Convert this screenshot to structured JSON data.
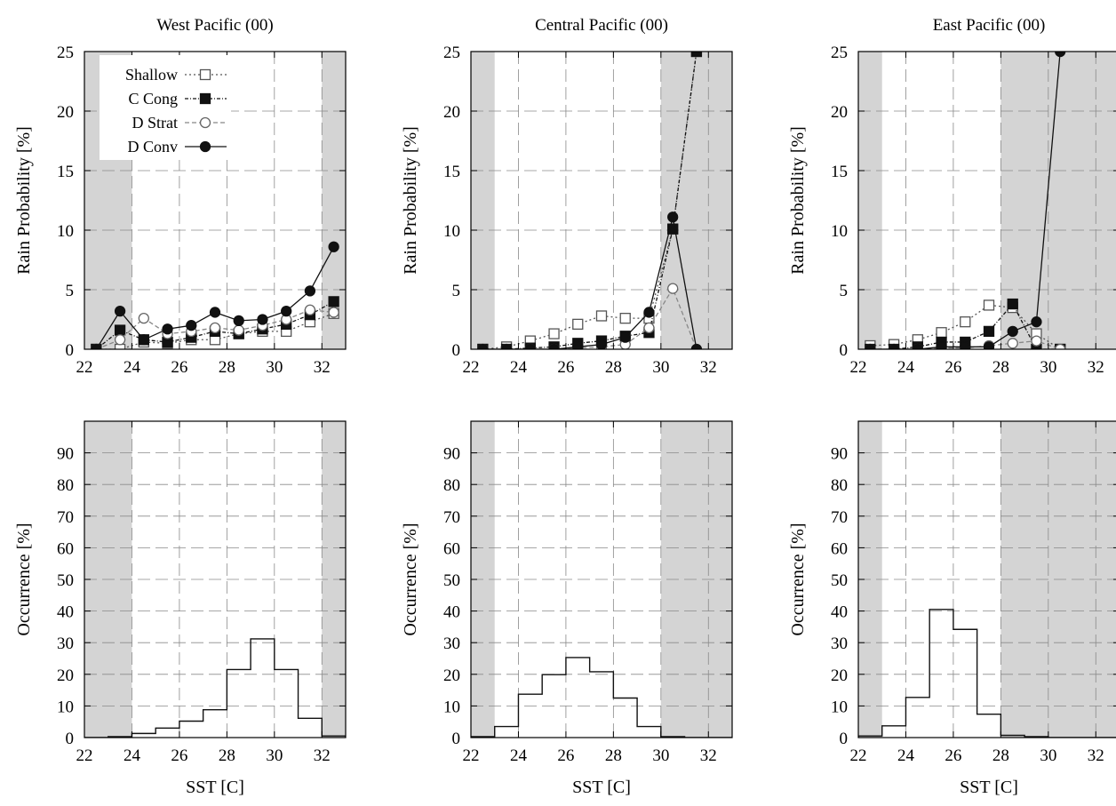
{
  "chart_data": [
    {
      "type": "line",
      "title": "West Pacific (00)",
      "xlabel": "",
      "ylabel": "Rain Probability [%]",
      "xlim": [
        22,
        33
      ],
      "ylim": [
        0,
        25
      ],
      "xticks": [
        "22",
        "24",
        "26",
        "28",
        "30",
        "32"
      ],
      "yticks": [
        "0",
        "5",
        "10",
        "15",
        "20",
        "25"
      ],
      "grid": true,
      "shaded_x": [
        [
          22,
          24
        ],
        [
          32,
          33
        ]
      ],
      "legend": {
        "placement": "top-left",
        "entries": [
          "Shallow",
          "C Cong",
          "D Strat",
          "D Conv"
        ]
      },
      "x": [
        22.5,
        23.5,
        24.5,
        25.5,
        26.5,
        27.5,
        28.5,
        29.5,
        30.5,
        31.5,
        32.5
      ],
      "series": [
        {
          "name": "Shallow",
          "values": [
            0,
            0,
            0.6,
            0.5,
            0.8,
            0.8,
            1.3,
            1.5,
            1.5,
            2.3,
            3.0
          ]
        },
        {
          "name": "C Cong",
          "values": [
            0,
            1.6,
            0.8,
            0.6,
            1.0,
            1.5,
            1.3,
            1.7,
            2.1,
            2.9,
            4.0
          ]
        },
        {
          "name": "D Strat",
          "values": [
            0,
            0.8,
            2.6,
            1.3,
            1.5,
            1.8,
            1.6,
            2.0,
            2.5,
            3.3,
            3.1
          ]
        },
        {
          "name": "D Conv",
          "values": [
            0,
            3.2,
            0.8,
            1.7,
            2.0,
            3.1,
            2.4,
            2.5,
            3.2,
            4.9,
            8.6
          ]
        }
      ]
    },
    {
      "type": "line",
      "title": "Central Pacific (00)",
      "xlabel": "",
      "ylabel": "Rain Probability [%]",
      "xlim": [
        22,
        33
      ],
      "ylim": [
        0,
        25
      ],
      "xticks": [
        "22",
        "24",
        "26",
        "28",
        "30",
        "32"
      ],
      "yticks": [
        "0",
        "5",
        "10",
        "15",
        "20",
        "25"
      ],
      "grid": true,
      "shaded_x": [
        [
          22,
          23
        ],
        [
          30,
          33
        ]
      ],
      "x": [
        22.5,
        23.5,
        24.5,
        25.5,
        26.5,
        27.5,
        28.5,
        29.5,
        30.5,
        31.5
      ],
      "series": [
        {
          "name": "Shallow",
          "values": [
            0,
            0.2,
            0.7,
            1.3,
            2.1,
            2.8,
            2.6,
            2.6,
            10.1,
            25
          ]
        },
        {
          "name": "C Cong",
          "values": [
            0,
            0,
            0.1,
            0.2,
            0.5,
            0.7,
            1.1,
            1.4,
            10.1,
            25
          ]
        },
        {
          "name": "D Strat",
          "values": [
            0,
            0,
            0,
            0,
            0.1,
            0.2,
            0.4,
            1.8,
            5.1,
            0
          ]
        },
        {
          "name": "D Conv",
          "values": [
            0,
            0,
            0,
            0,
            0.2,
            0.4,
            1.0,
            3.1,
            11.1,
            0
          ]
        }
      ]
    },
    {
      "type": "line",
      "title": "East Pacific (00)",
      "xlabel": "",
      "ylabel": "Rain Probability [%]",
      "xlim": [
        22,
        33
      ],
      "ylim": [
        0,
        25
      ],
      "xticks": [
        "22",
        "24",
        "26",
        "28",
        "30",
        "32"
      ],
      "yticks": [
        "0",
        "5",
        "10",
        "15",
        "20",
        "25"
      ],
      "grid": true,
      "shaded_x": [
        [
          22,
          23
        ],
        [
          28,
          33
        ]
      ],
      "x": [
        22.5,
        23.5,
        24.5,
        25.5,
        26.5,
        27.5,
        28.5,
        29.5,
        30.5
      ],
      "series": [
        {
          "name": "Shallow",
          "values": [
            0.3,
            0.4,
            0.8,
            1.4,
            2.3,
            3.7,
            3.5,
            1.3,
            0
          ]
        },
        {
          "name": "C Cong",
          "values": [
            0,
            0,
            0.2,
            0.6,
            0.6,
            1.5,
            3.8,
            0,
            0
          ]
        },
        {
          "name": "D Strat",
          "values": [
            0,
            0,
            0,
            0.1,
            0.1,
            0.3,
            0.5,
            0.7,
            0
          ]
        },
        {
          "name": "D Conv",
          "values": [
            0,
            0,
            0,
            0.2,
            0.2,
            0.2,
            1.5,
            2.3,
            25
          ]
        }
      ]
    },
    {
      "type": "bar",
      "title": "",
      "xlabel": "SST [C]",
      "ylabel": "Occurrence [%]",
      "xlim": [
        22,
        33
      ],
      "ylim": [
        0,
        100
      ],
      "xticks": [
        "22",
        "24",
        "26",
        "28",
        "30",
        "32"
      ],
      "yticks": [
        "0",
        "10",
        "20",
        "30",
        "40",
        "50",
        "60",
        "70",
        "80",
        "90"
      ],
      "grid": true,
      "shaded_x": [
        [
          22,
          24
        ],
        [
          32,
          33
        ]
      ],
      "bin_edges": [
        22,
        23,
        24,
        25,
        26,
        27,
        28,
        29,
        30,
        31,
        32,
        33
      ],
      "values": [
        0,
        0.3,
        1.3,
        3.0,
        5.2,
        8.8,
        21.5,
        31.2,
        21.5,
        6.1,
        0.5
      ]
    },
    {
      "type": "bar",
      "title": "",
      "xlabel": "SST [C]",
      "ylabel": "Occurrence [%]",
      "xlim": [
        22,
        33
      ],
      "ylim": [
        0,
        100
      ],
      "xticks": [
        "22",
        "24",
        "26",
        "28",
        "30",
        "32"
      ],
      "yticks": [
        "0",
        "10",
        "20",
        "30",
        "40",
        "50",
        "60",
        "70",
        "80",
        "90"
      ],
      "grid": true,
      "shaded_x": [
        [
          22,
          23
        ],
        [
          30,
          33
        ]
      ],
      "bin_edges": [
        22,
        23,
        24,
        25,
        26,
        27,
        28,
        29,
        30,
        31,
        32,
        33
      ],
      "values": [
        0.3,
        3.5,
        13.7,
        19.9,
        25.3,
        20.8,
        12.5,
        3.5,
        0.3,
        0,
        0
      ]
    },
    {
      "type": "bar",
      "title": "",
      "xlabel": "SST [C]",
      "ylabel": "Occurrence [%]",
      "xlim": [
        22,
        33
      ],
      "ylim": [
        0,
        100
      ],
      "xticks": [
        "22",
        "24",
        "26",
        "28",
        "30",
        "32"
      ],
      "yticks": [
        "0",
        "10",
        "20",
        "30",
        "40",
        "50",
        "60",
        "70",
        "80",
        "90"
      ],
      "grid": true,
      "shaded_x": [
        [
          22,
          23
        ],
        [
          28,
          33
        ]
      ],
      "bin_edges": [
        22,
        23,
        24,
        25,
        26,
        27,
        28,
        29,
        30,
        31,
        32,
        33
      ],
      "values": [
        0.5,
        3.7,
        12.7,
        40.5,
        34.2,
        7.4,
        0.7,
        0.3,
        0,
        0,
        0
      ]
    }
  ]
}
